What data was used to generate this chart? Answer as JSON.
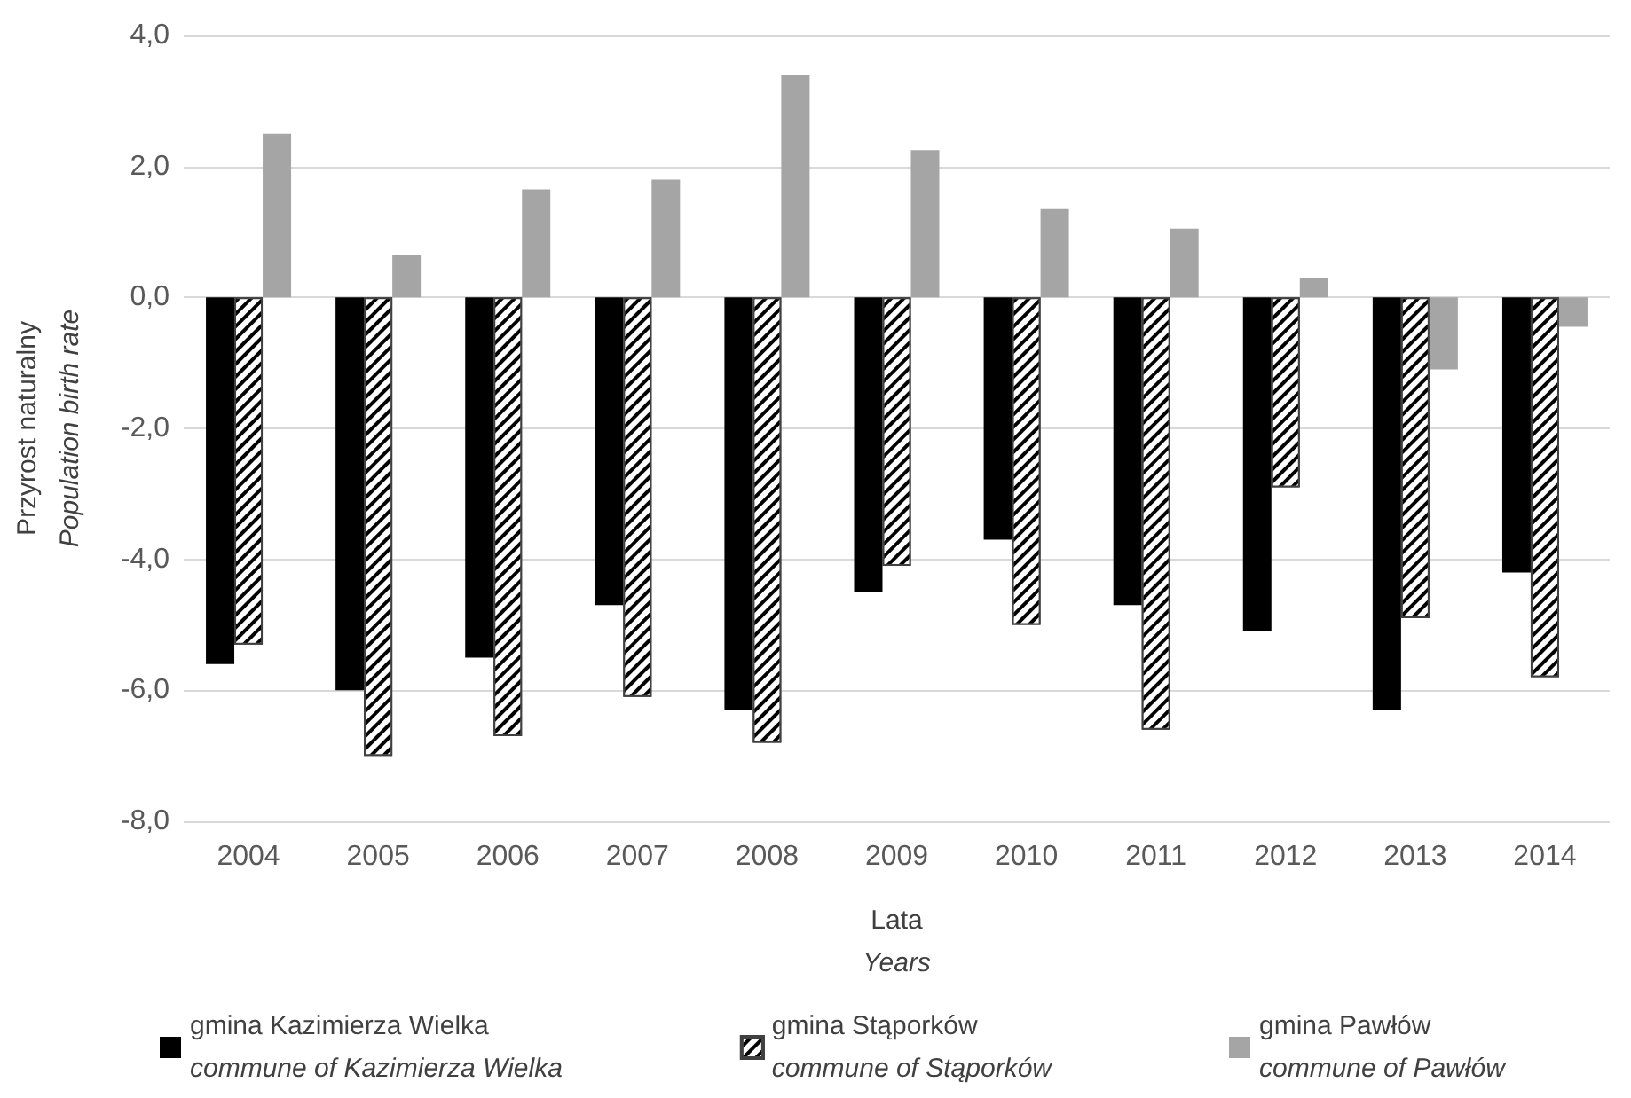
{
  "chart_data": {
    "type": "bar",
    "categories": [
      "2004",
      "2005",
      "2006",
      "2007",
      "2008",
      "2009",
      "2010",
      "2011",
      "2012",
      "2013",
      "2014"
    ],
    "series": [
      {
        "name": "gmina Kazimierza Wielka\ncommune of Kazimierza Wielka",
        "color": "#000000",
        "values": [
          -5.6,
          -6.0,
          -5.5,
          -4.7,
          -6.3,
          -4.5,
          -3.7,
          -4.7,
          -5.1,
          -6.3,
          -4.2
        ]
      },
      {
        "name": "gmina Stąporków\ncommune of Stąporków",
        "color": "#000000",
        "values": [
          -5.3,
          -7.0,
          -6.7,
          -6.1,
          -6.8,
          -4.1,
          -5.0,
          -6.6,
          -2.9,
          -4.9,
          -5.8
        ]
      },
      {
        "name": "gmina Pawłów\ncommune of Pawłów",
        "color": "#a5a5a5",
        "values": [
          2.5,
          0.65,
          1.65,
          1.8,
          3.4,
          2.25,
          1.35,
          1.05,
          0.3,
          -1.1,
          -0.45
        ]
      }
    ],
    "xlabel": "Lata\nYears",
    "ylabel": "Przyrost naturalny\nPopulation birth rate",
    "ylim": [
      -8,
      4
    ],
    "yticks": [
      {
        "value": -8,
        "label": "-8,0"
      },
      {
        "value": -6,
        "label": "-6,0"
      },
      {
        "value": -4,
        "label": "-4,0"
      },
      {
        "value": -2,
        "label": "-2,0"
      },
      {
        "value": 0,
        "label": "0,0"
      },
      {
        "value": 2,
        "label": "2,0"
      },
      {
        "value": 4,
        "label": "4,0"
      }
    ],
    "grid": "y",
    "legend": "bottom"
  }
}
